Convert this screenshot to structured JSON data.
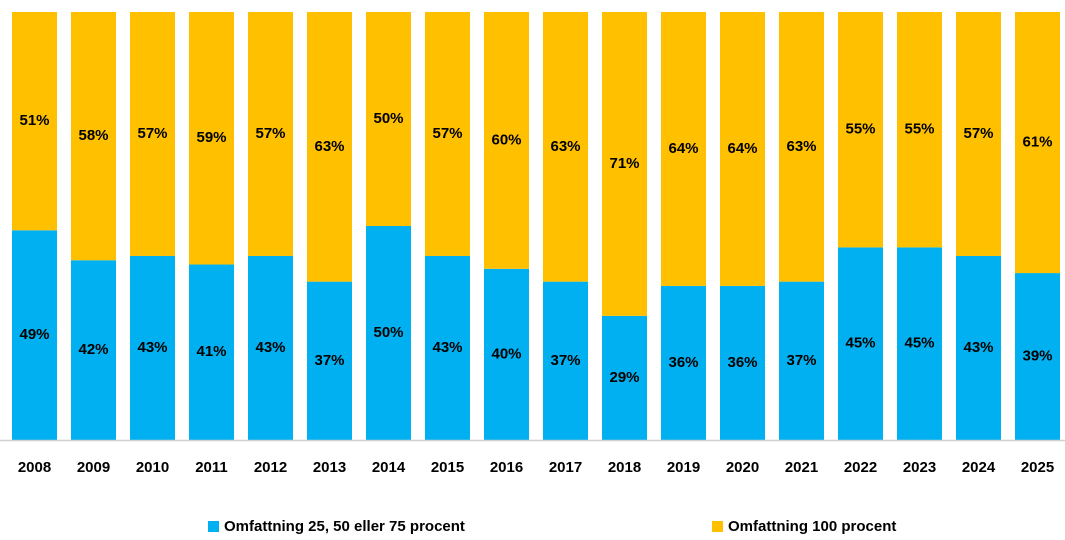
{
  "chart_data": {
    "type": "stacked_bar",
    "categories": [
      "2008",
      "2009",
      "2010",
      "2011",
      "2012",
      "2013",
      "2014",
      "2015",
      "2016",
      "2017",
      "2018",
      "2019",
      "2020",
      "2021",
      "2022",
      "2023",
      "2024",
      "2025"
    ],
    "series": [
      {
        "name": "Omfattning 25, 50 eller 75 procent",
        "color": "#00b0f0",
        "values": [
          49,
          42,
          43,
          41,
          43,
          37,
          50,
          43,
          40,
          37,
          29,
          36,
          36,
          37,
          45,
          45,
          43,
          39
        ],
        "value_labels": [
          "49%",
          "42%",
          "43%",
          "41%",
          "43%",
          "37%",
          "50%",
          "43%",
          "40%",
          "37%",
          "29%",
          "36%",
          "36%",
          "37%",
          "45%",
          "45%",
          "43%",
          "39%"
        ]
      },
      {
        "name": "Omfattning 100 procent",
        "color": "#ffc000",
        "values": [
          51,
          58,
          57,
          59,
          57,
          63,
          50,
          57,
          60,
          63,
          71,
          64,
          64,
          63,
          55,
          55,
          57,
          61
        ],
        "value_labels": [
          "51%",
          "58%",
          "57%",
          "59%",
          "57%",
          "63%",
          "50%",
          "57%",
          "60%",
          "63%",
          "71%",
          "64%",
          "64%",
          "63%",
          "55%",
          "55%",
          "57%",
          "61%"
        ]
      }
    ],
    "ylim": [
      0,
      100
    ],
    "legend": "bottom"
  }
}
